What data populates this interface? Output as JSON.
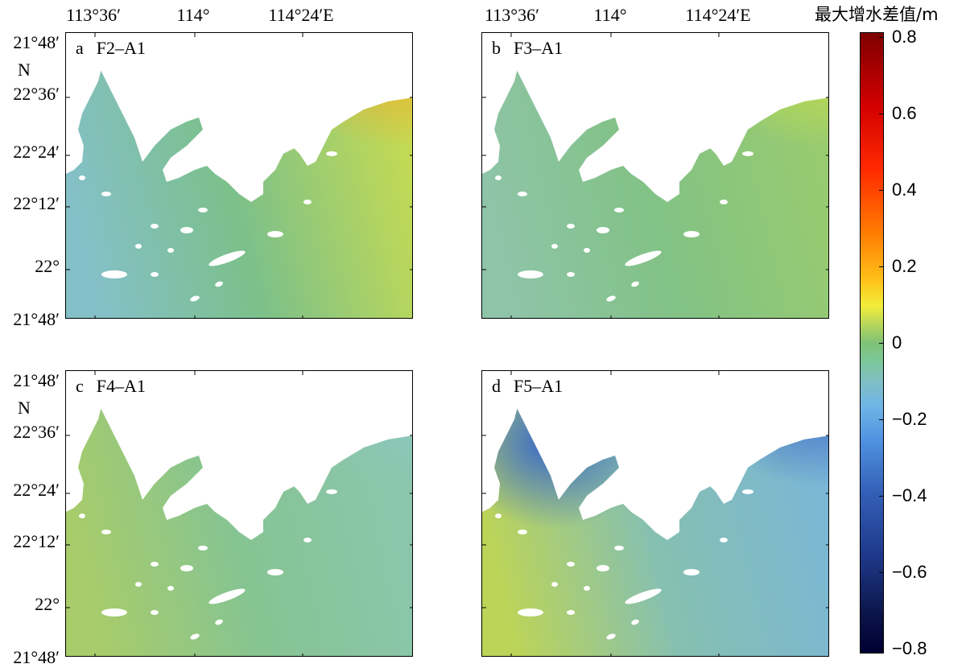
{
  "figure": {
    "colorbar": {
      "title": "最大增水差值/m",
      "ticks": [
        "0.8",
        "0.6",
        "0.4",
        "0.2",
        "0",
        "−0.2",
        "−0.4",
        "−0.6",
        "−0.8"
      ],
      "range": [
        -0.8,
        0.8
      ]
    },
    "x_ticks": [
      "113°36′",
      "114°",
      "114°24′E"
    ],
    "y_ticks": [
      "21°48′",
      "22°36′",
      "22°24′",
      "22°12′",
      "22°",
      "21°48′"
    ],
    "n_label": "N",
    "panels": [
      {
        "letter": "a",
        "title": "F2–A1",
        "sea_base": "#7cc08a",
        "west": "#84c0c8",
        "east": "#c8dc50",
        "ne_hot": "#f0a828"
      },
      {
        "letter": "b",
        "title": "F3–A1",
        "sea_base": "#82c286",
        "west": "#8ec4a8",
        "east": "#9acc6e",
        "ne_hot": "#c8de48"
      },
      {
        "letter": "c",
        "title": "F4–A1",
        "sea_base": "#86c492",
        "west": "#a8cc6a",
        "east": "#8cc6b0",
        "ne_hot": "#8cc6c0"
      },
      {
        "letter": "d",
        "title": "F5–A1",
        "sea_base": "#86c0b0",
        "west": "#bcd458",
        "east": "#7ab6d8",
        "ne_hot": "#3a62c4",
        "estuary": "#3866c8"
      }
    ]
  }
}
